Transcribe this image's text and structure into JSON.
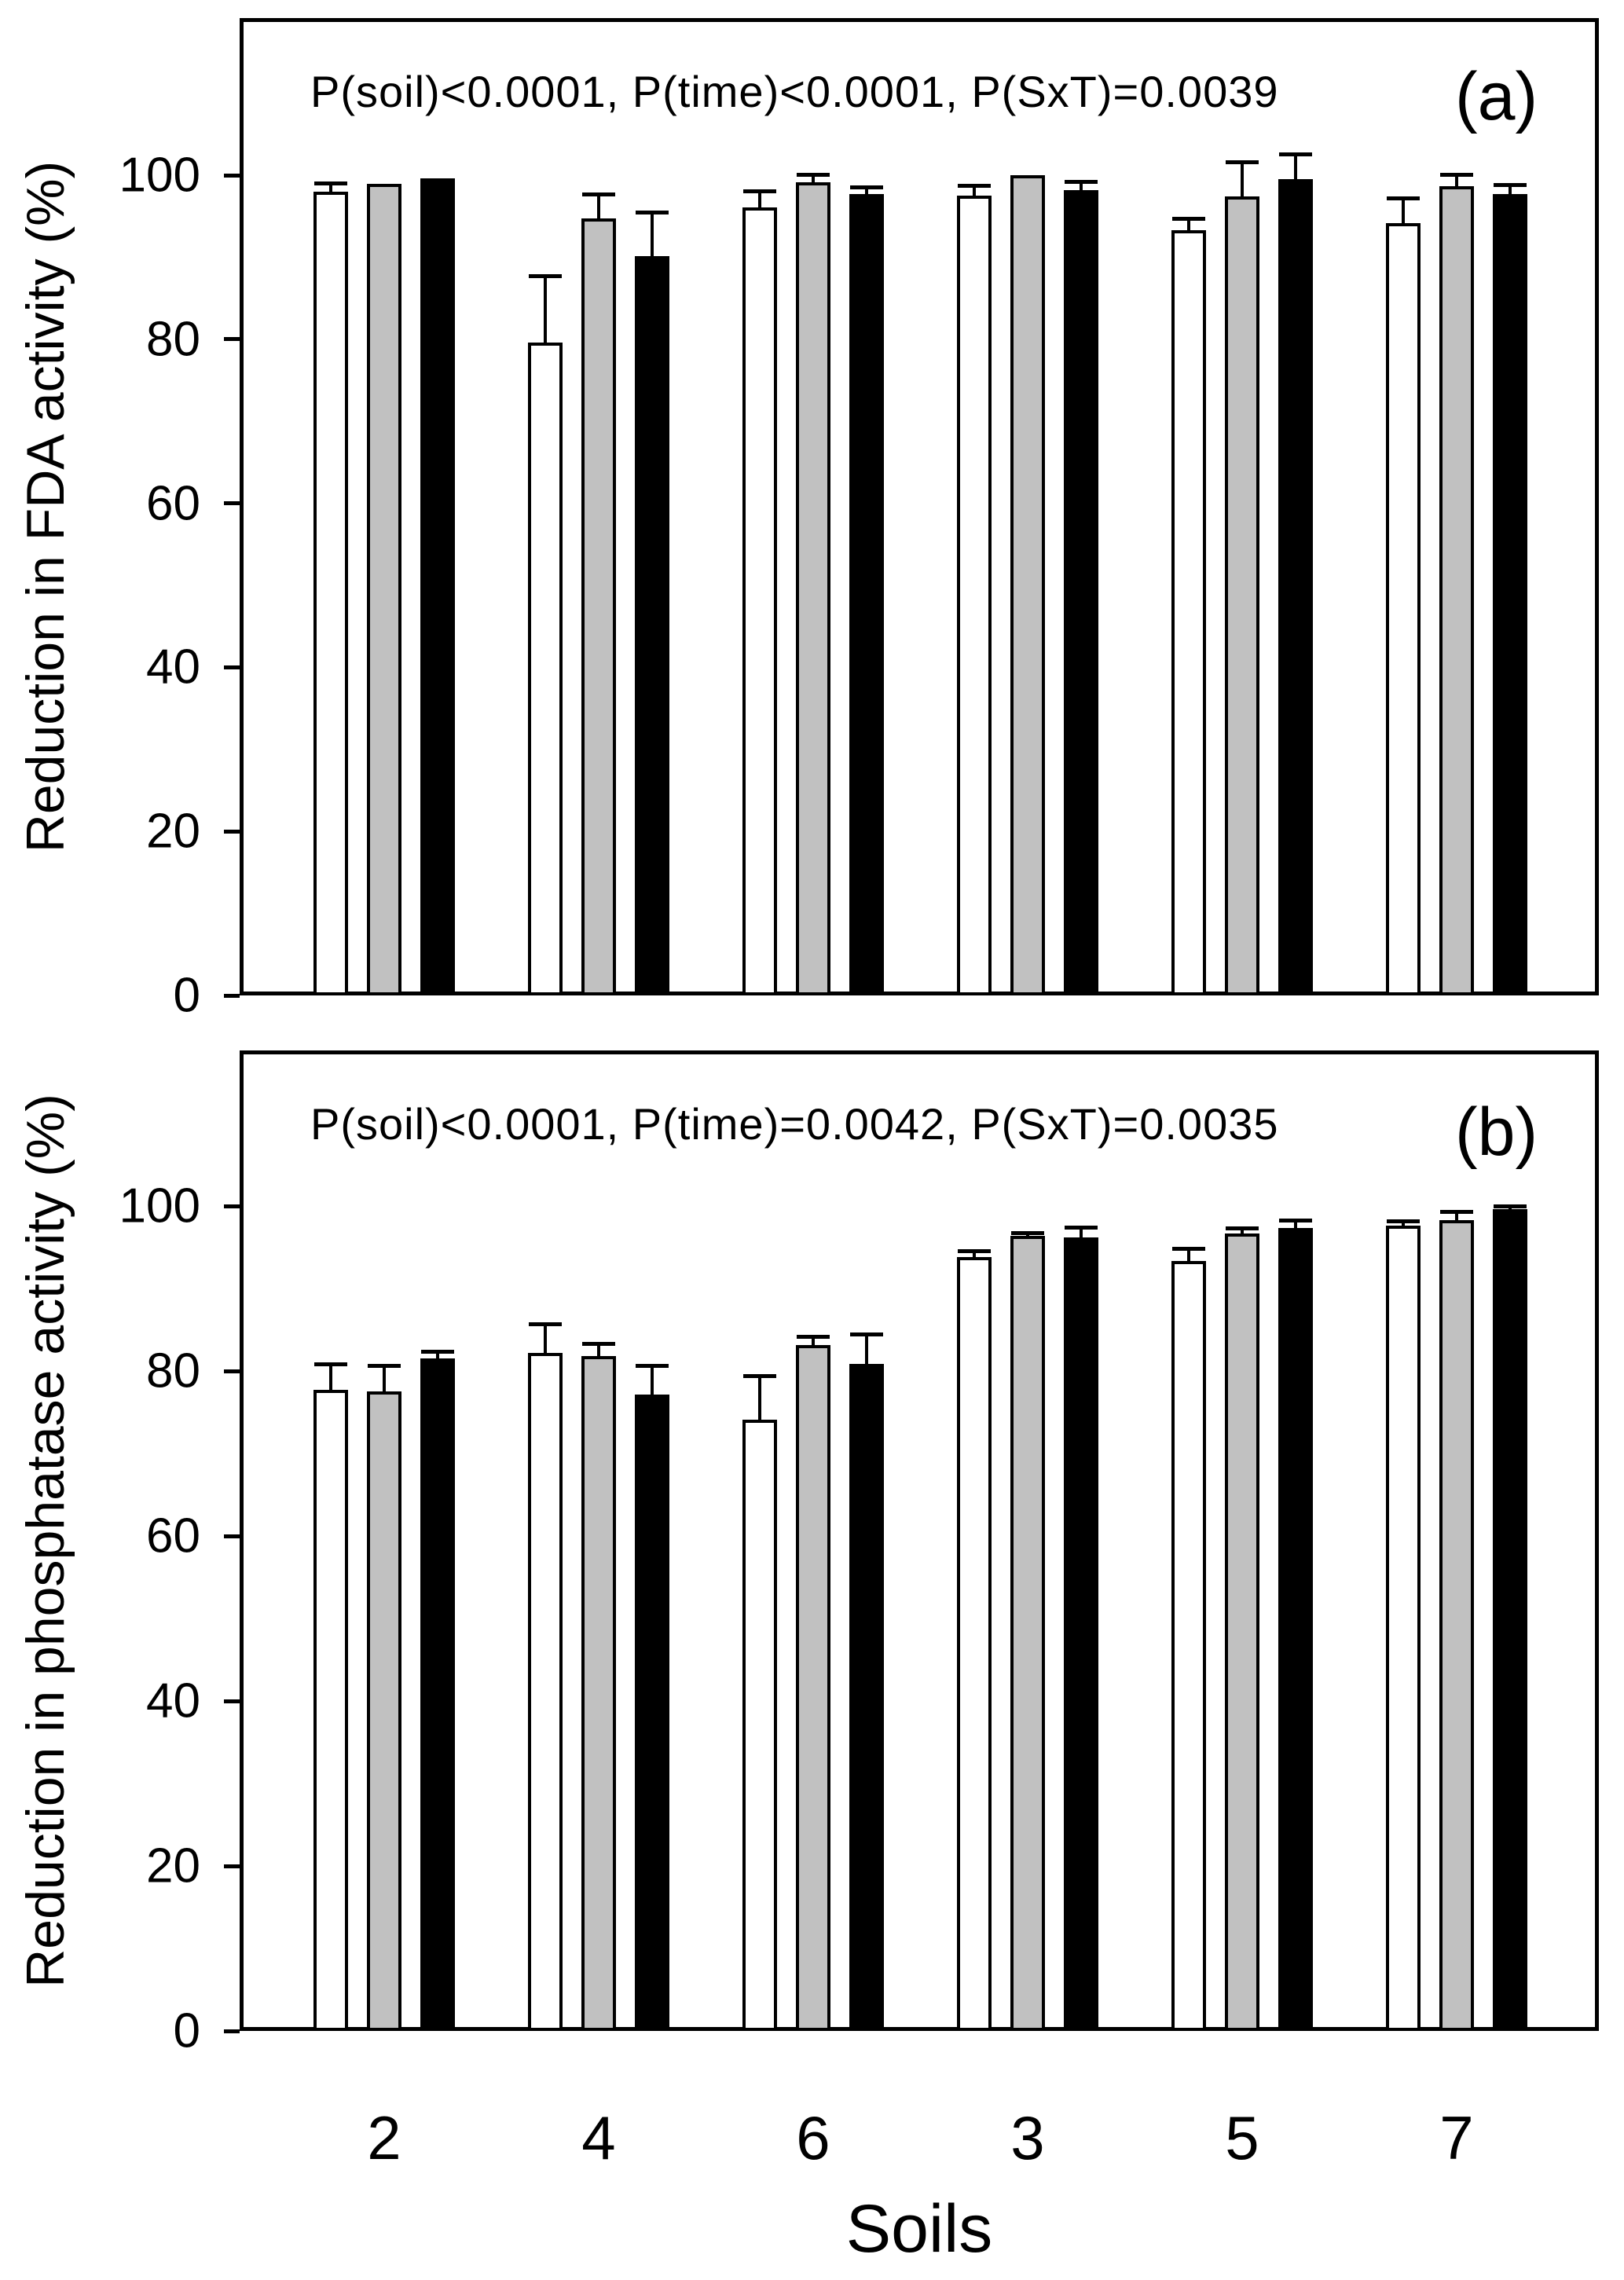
{
  "figure": {
    "xlabel": "Soils",
    "bar_outline_color": "#000000",
    "background_color": "#ffffff"
  },
  "chart_data": [
    {
      "type": "bar",
      "panel_label": "(a)",
      "annotation": "P(soil)<0.0001, P(time)<0.0001, P(SxT)=0.0039",
      "ylabel": "Reduction in FDA activity (%)",
      "xlabel": "Soils",
      "ylim": [
        0,
        119
      ],
      "yticks": [
        0,
        20,
        40,
        60,
        80,
        100
      ],
      "grid": false,
      "legend": "none",
      "categories": [
        "2",
        "4",
        "6",
        "3",
        "5",
        "7"
      ],
      "series": [
        {
          "name": "white",
          "fill": "#ffffff",
          "values": [
            98.0,
            79.6,
            96.1,
            97.5,
            93.3,
            94.2
          ],
          "errors": [
            0.9,
            8.0,
            1.9,
            1.2,
            1.3,
            2.9
          ]
        },
        {
          "name": "gray",
          "fill": "#c1c1c1",
          "values": [
            98.9,
            94.7,
            99.1,
            100.0,
            97.4,
            98.7
          ],
          "errors": [
            0,
            2.9,
            0.9,
            0,
            4.1,
            1.3
          ]
        },
        {
          "name": "black",
          "fill": "#000000",
          "values": [
            99.6,
            90.1,
            97.7,
            98.2,
            99.5,
            97.7
          ],
          "errors": [
            0,
            5.3,
            0.8,
            0.9,
            3.0,
            1.1
          ]
        }
      ]
    },
    {
      "type": "bar",
      "panel_label": "(b)",
      "annotation": "P(soil)<0.0001, P(time)=0.0042, P(SxT)=0.0035",
      "ylabel": "Reduction in phosphatase activity (%)",
      "xlabel": "Soils",
      "ylim": [
        0,
        119
      ],
      "yticks": [
        0,
        20,
        40,
        60,
        80,
        100
      ],
      "grid": false,
      "legend": "none",
      "categories": [
        "2",
        "4",
        "6",
        "3",
        "5",
        "7"
      ],
      "series": [
        {
          "name": "white",
          "fill": "#ffffff",
          "values": [
            77.7,
            82.2,
            74.1,
            93.8,
            93.3,
            97.6
          ],
          "errors": [
            3.1,
            3.4,
            5.2,
            0.7,
            1.5,
            0.5
          ]
        },
        {
          "name": "gray",
          "fill": "#c1c1c1",
          "values": [
            77.5,
            81.8,
            83.1,
            96.4,
            96.7,
            98.3
          ],
          "errors": [
            3.1,
            1.4,
            1.0,
            0.3,
            0.5,
            0.9
          ]
        },
        {
          "name": "black",
          "fill": "#000000",
          "values": [
            81.5,
            77.1,
            80.9,
            96.2,
            97.3,
            99.6
          ],
          "errors": [
            0.8,
            3.5,
            3.5,
            1.1,
            0.9,
            0.3
          ]
        }
      ]
    }
  ]
}
